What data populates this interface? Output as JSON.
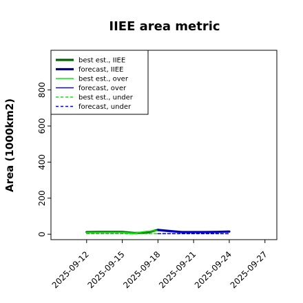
{
  "chart_data": {
    "type": "line",
    "title": "IIEE area metric",
    "ylabel": "Area (1000km2)",
    "xlabel": "",
    "ylim": [
      -30,
      1020
    ],
    "yticks": [
      0,
      200,
      400,
      600,
      800
    ],
    "x_range": [
      "2025-09-09",
      "2025-09-28"
    ],
    "xticks": [
      "2025-09-12",
      "2025-09-15",
      "2025-09-18",
      "2025-09-21",
      "2025-09-24",
      "2025-09-27"
    ],
    "highlight_tick": "2025-09-18",
    "highlight_color": "#228b22",
    "grid": false,
    "legend_position": "top-left",
    "series": [
      {
        "name": "best est., IIEE",
        "color": "#006400",
        "style": "solid-thick",
        "x": [
          "2025-09-12",
          "2025-09-13",
          "2025-09-14",
          "2025-09-15",
          "2025-09-16",
          "2025-09-17",
          "2025-09-18"
        ],
        "values": [
          12,
          13,
          13,
          13,
          7,
          8,
          24
        ]
      },
      {
        "name": "forecast, IIEE",
        "color": "#00008b",
        "style": "solid-thick",
        "x": [
          "2025-09-18",
          "2025-09-19",
          "2025-09-20",
          "2025-09-21",
          "2025-09-22",
          "2025-09-23",
          "2025-09-24"
        ],
        "values": [
          24,
          18,
          12,
          12,
          12,
          13,
          15
        ]
      },
      {
        "name": "best est., over",
        "color": "#00ee00",
        "style": "solid",
        "x": [
          "2025-09-12",
          "2025-09-13",
          "2025-09-14",
          "2025-09-15",
          "2025-09-16",
          "2025-09-17",
          "2025-09-18"
        ],
        "values": [
          10,
          11,
          11,
          11,
          6,
          16,
          20
        ]
      },
      {
        "name": "forecast, over",
        "color": "#0000ff",
        "style": "solid",
        "x": [
          "2025-09-18",
          "2025-09-19",
          "2025-09-20",
          "2025-09-21",
          "2025-09-22",
          "2025-09-23",
          "2025-09-24"
        ],
        "values": [
          20,
          14,
          10,
          10,
          10,
          11,
          12
        ]
      },
      {
        "name": "best est., under",
        "color": "#00ee00",
        "style": "dashed",
        "x": [
          "2025-09-12",
          "2025-09-13",
          "2025-09-14",
          "2025-09-15",
          "2025-09-16",
          "2025-09-17",
          "2025-09-18"
        ],
        "values": [
          3,
          3,
          3,
          3,
          2,
          3,
          3
        ]
      },
      {
        "name": "forecast, under",
        "color": "#0000ff",
        "style": "dashed",
        "x": [
          "2025-09-18",
          "2025-09-19",
          "2025-09-20",
          "2025-09-21",
          "2025-09-22",
          "2025-09-23",
          "2025-09-24"
        ],
        "values": [
          3,
          3,
          3,
          3,
          3,
          3,
          3
        ]
      }
    ]
  }
}
